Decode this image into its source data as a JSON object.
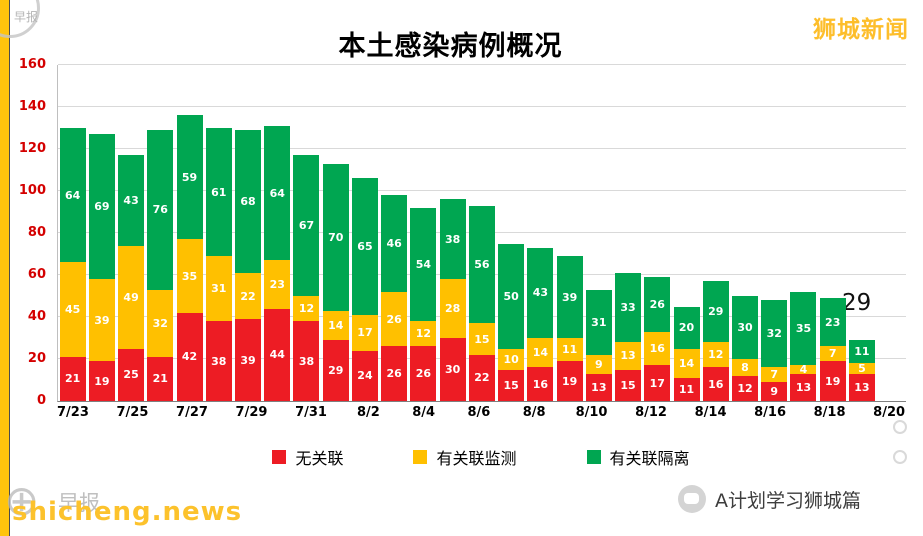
{
  "page": {
    "brand": "狮城新闻",
    "brand_color": "#fdbe2b",
    "left_strip_color": "#ffc40c",
    "watermarks": {
      "top_left_logo": "早报",
      "logo_glyph": "⊕",
      "bottom_left_gray_logo": "早报",
      "bottom_left_site": "shicheng.news",
      "bottom_right_account": "A计划学习狮城篇"
    }
  },
  "chart_data": {
    "type": "bar",
    "stacked": true,
    "title": "本土感染病例概况",
    "xlabel": "",
    "ylabel": "",
    "ylim": [
      0,
      160
    ],
    "yticks": [
      0,
      20,
      40,
      60,
      80,
      100,
      120,
      140,
      160
    ],
    "grid": true,
    "legend_position": "bottom",
    "x_tick_labels": [
      "7/23",
      "7/25",
      "7/27",
      "7/29",
      "7/31",
      "8/2",
      "8/4",
      "8/6",
      "8/8",
      "8/10",
      "8/12",
      "8/14",
      "8/16",
      "8/18",
      "8/20"
    ],
    "categories": [
      "7/23",
      "7/24",
      "7/25",
      "7/26",
      "7/27",
      "7/28",
      "7/29",
      "7/30",
      "7/31",
      "8/1",
      "8/2",
      "8/3",
      "8/4",
      "8/5",
      "8/6",
      "8/7",
      "8/8",
      "8/9",
      "8/10",
      "8/11",
      "8/12",
      "8/13",
      "8/14",
      "8/15",
      "8/16",
      "8/17",
      "8/18",
      "8/19"
    ],
    "series": [
      {
        "name": "无关联",
        "color": "#ed1c24",
        "values": [
          21,
          19,
          25,
          21,
          42,
          38,
          39,
          44,
          38,
          29,
          24,
          26,
          26,
          30,
          22,
          15,
          16,
          19,
          13,
          15,
          17,
          11,
          16,
          12,
          9,
          13,
          19,
          13
        ]
      },
      {
        "name": "有关联监测",
        "color": "#ffc000",
        "values": [
          45,
          39,
          49,
          32,
          35,
          31,
          22,
          23,
          12,
          14,
          17,
          26,
          12,
          28,
          15,
          10,
          14,
          11,
          9,
          13,
          16,
          14,
          12,
          8,
          7,
          4,
          7,
          5
        ]
      },
      {
        "name": "有关联隔离",
        "color": "#00a651",
        "values": [
          64,
          69,
          43,
          76,
          59,
          61,
          68,
          64,
          67,
          70,
          65,
          46,
          54,
          38,
          56,
          50,
          43,
          39,
          31,
          33,
          26,
          20,
          29,
          30,
          32,
          35,
          23,
          11
        ]
      }
    ],
    "annotation": {
      "text": "29"
    }
  }
}
